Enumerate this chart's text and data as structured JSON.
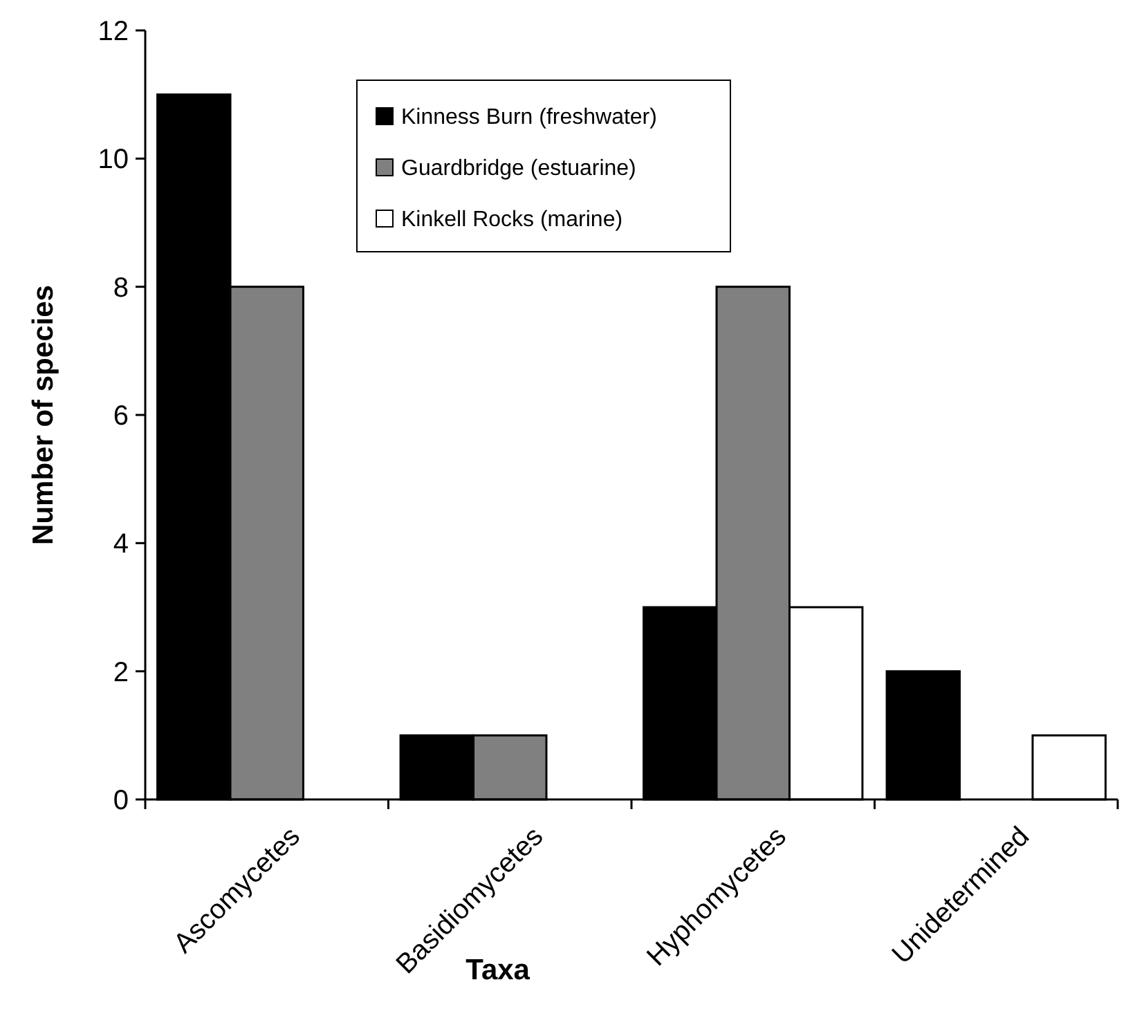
{
  "chart_data": {
    "type": "bar",
    "xlabel": "Taxa",
    "ylabel": "Number of species",
    "categories": [
      "Ascomycetes",
      "Basidiomycetes",
      "Hyphomycetes",
      "Unidetermined"
    ],
    "series": [
      {
        "name": "Kinness Burn (freshwater)",
        "color": "#000000",
        "values": [
          11,
          1,
          3,
          2
        ]
      },
      {
        "name": "Guardbridge (estuarine)",
        "color": "#808080",
        "values": [
          8,
          1,
          8,
          0
        ]
      },
      {
        "name": "Kinkell Rocks (marine)",
        "color": "#ffffff",
        "values": [
          0,
          0,
          3,
          1
        ]
      }
    ],
    "ylim": [
      0,
      12
    ],
    "yticks": [
      0,
      2,
      4,
      6,
      8,
      10,
      12
    ],
    "grid": false,
    "legend": "top"
  }
}
